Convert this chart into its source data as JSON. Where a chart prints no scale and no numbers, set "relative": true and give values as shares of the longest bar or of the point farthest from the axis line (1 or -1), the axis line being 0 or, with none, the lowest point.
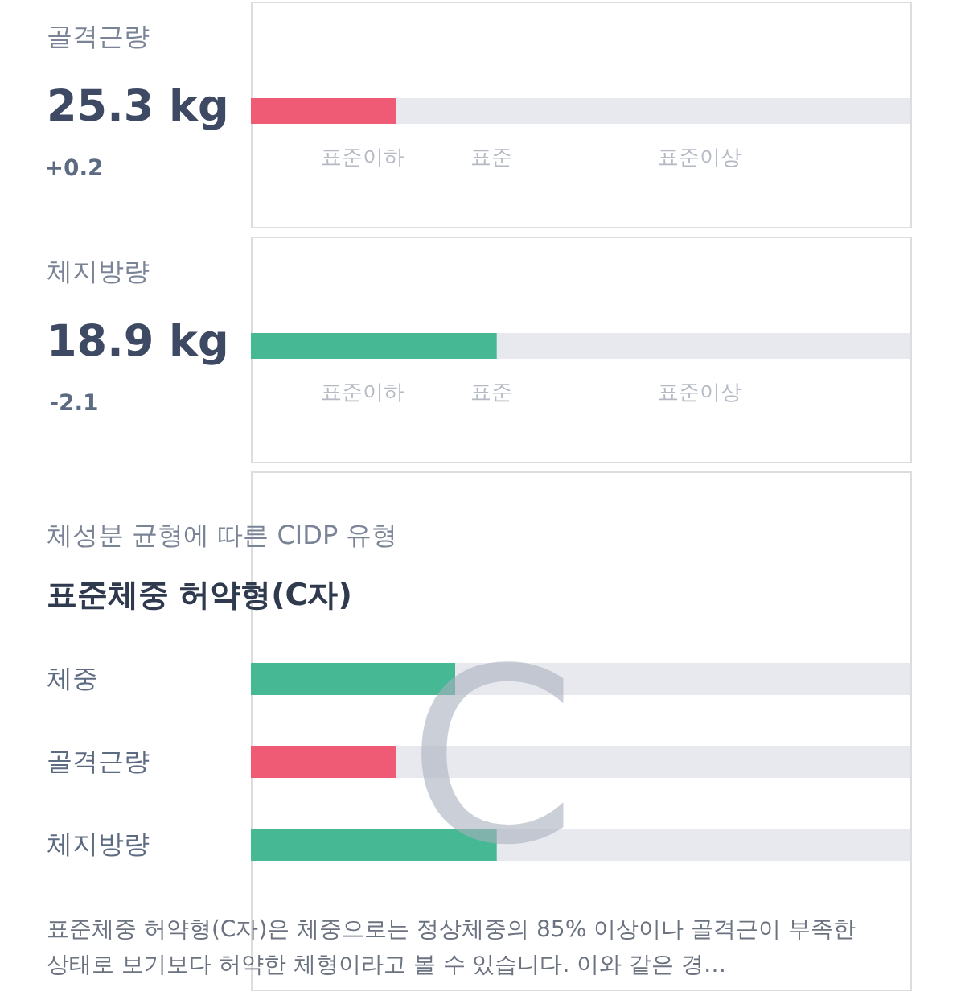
{
  "chart_data": [
    {
      "type": "bar",
      "orientation": "horizontal",
      "stacked": true,
      "relative": true,
      "title": "골격근량",
      "subtitle": "25.3 kg",
      "categories": [
        null
      ],
      "series": [
        {
          "color": "#ef5a74",
          "values": [
            0.22
          ]
        },
        {
          "color": "#e8e9ee",
          "values": [
            0.78
          ]
        }
      ],
      "annotations": [
        "+0.2",
        "표준이하",
        "표준",
        "표준이상"
      ]
    },
    {
      "type": "bar",
      "orientation": "horizontal",
      "stacked": true,
      "relative": true,
      "title": "체지방량",
      "subtitle": "18.9 kg",
      "categories": [
        null
      ],
      "series": [
        {
          "color": "#46b894",
          "values": [
            0.373
          ]
        },
        {
          "color": "#e8e9ee",
          "values": [
            0.627
          ]
        }
      ],
      "annotations": [
        "-2.1",
        "표준이하",
        "표준",
        "표준이상"
      ]
    },
    {
      "type": "bar",
      "orientation": "horizontal",
      "stacked": true,
      "relative": true,
      "title": "표준체중 허약형(C자)",
      "subtitle": "체성분 균형에 따른 CIDP 유형",
      "categories": [
        "체중",
        "골격근량",
        "체지방량"
      ],
      "series": [
        {
          "colors": [
            "#46b894",
            "#ef5a74",
            "#46b894"
          ],
          "values": [
            0.31,
            0.22,
            0.373
          ]
        },
        {
          "color": "#e8e9ee",
          "values": [
            0.69,
            0.78,
            0.627
          ]
        }
      ],
      "annotations": [
        "C",
        "표준체중 허약형(C자)은 체중으로는 정상체중의 85% 이상이나 골격근이 부족한 상태로 보기보다 허약한 체형이라고 볼 수 있습니다. 이와 같은 경…"
      ]
    }
  ]
}
